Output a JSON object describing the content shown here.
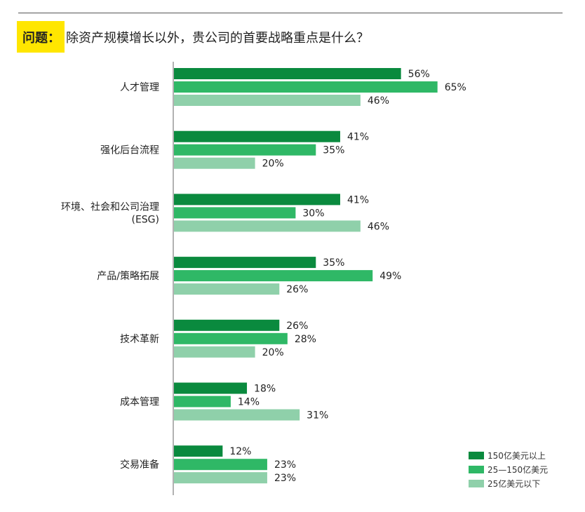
{
  "question": {
    "label": "问题：",
    "text": "除资产规模增长以外，贵公司的首要战略重点是什么？"
  },
  "colors": {
    "question_highlight": "#ffe600",
    "axis": "#999999",
    "rule": "#555555"
  },
  "chart_data": {
    "type": "bar",
    "orientation": "horizontal",
    "value_suffix": "%",
    "xlim": [
      0,
      70
    ],
    "grid": false,
    "legend_position": "bottom-right",
    "categories": [
      [
        "人才管理"
      ],
      [
        "强化后台流程"
      ],
      [
        "环境、社会和公司治理",
        "(ESG)"
      ],
      [
        "产品/策略拓展"
      ],
      [
        "技术革新"
      ],
      [
        "成本管理"
      ],
      [
        "交易准备"
      ]
    ],
    "series": [
      {
        "name": "150亿美元以上",
        "color": "#0a8a3e",
        "values": [
          56,
          41,
          41,
          35,
          26,
          18,
          12
        ]
      },
      {
        "name": "25—150亿美元",
        "color": "#2fb866",
        "values": [
          65,
          35,
          30,
          49,
          28,
          14,
          23
        ]
      },
      {
        "name": "25亿美元以下",
        "color": "#8fd0aa",
        "values": [
          46,
          20,
          46,
          26,
          20,
          31,
          23
        ]
      }
    ]
  }
}
